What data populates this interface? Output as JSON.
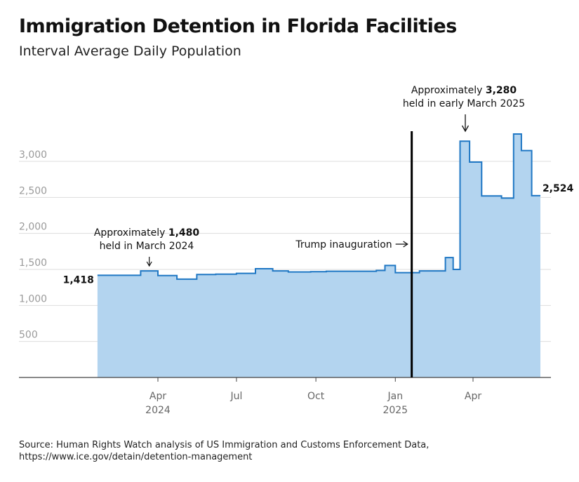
{
  "chart_data": {
    "type": "area",
    "title": "Immigration Detention in Florida Facilities",
    "subtitle": "Interval Average Daily Population",
    "xlabel": "",
    "ylabel": "",
    "ylim": [
      0,
      3500
    ],
    "y_ticks": [
      500,
      1000,
      1500,
      2000,
      2500,
      3000
    ],
    "y_tick_labels": [
      "500",
      "1,000",
      "1,500",
      "2,000",
      "2,500",
      "3,000"
    ],
    "grid": true,
    "x_range": [
      "2024-01-22",
      "2025-06-18"
    ],
    "x_ticks": [
      {
        "date": "2024-04-01",
        "label": "Apr",
        "year": "2024"
      },
      {
        "date": "2024-07-01",
        "label": "Jul",
        "year": ""
      },
      {
        "date": "2024-10-01",
        "label": "Oct",
        "year": ""
      },
      {
        "date": "2025-01-01",
        "label": "Jan",
        "year": "2025"
      },
      {
        "date": "2025-04-01",
        "label": "Apr",
        "year": ""
      }
    ],
    "series": [
      {
        "name": "Interval Average Daily Population",
        "step_start": "2024-01-22",
        "steps": [
          {
            "until": "2024-03-12",
            "value": 1418
          },
          {
            "until": "2024-04-01",
            "value": 1480
          },
          {
            "until": "2024-04-23",
            "value": 1415
          },
          {
            "until": "2024-05-16",
            "value": 1365
          },
          {
            "until": "2024-06-07",
            "value": 1430
          },
          {
            "until": "2024-07-01",
            "value": 1435
          },
          {
            "until": "2024-07-23",
            "value": 1445
          },
          {
            "until": "2024-08-12",
            "value": 1510
          },
          {
            "until": "2024-08-30",
            "value": 1480
          },
          {
            "until": "2024-09-25",
            "value": 1465
          },
          {
            "until": "2024-10-13",
            "value": 1468
          },
          {
            "until": "2024-12-10",
            "value": 1475
          },
          {
            "until": "2024-12-20",
            "value": 1485
          },
          {
            "until": "2025-01-01",
            "value": 1555
          },
          {
            "until": "2025-01-29",
            "value": 1455
          },
          {
            "until": "2025-02-19",
            "value": 1480
          },
          {
            "until": "2025-02-28",
            "value": 1480
          },
          {
            "until": "2025-03-09",
            "value": 1665
          },
          {
            "until": "2025-03-17",
            "value": 1500
          },
          {
            "until": "2025-03-28",
            "value": 3280
          },
          {
            "until": "2025-04-11",
            "value": 2990
          },
          {
            "until": "2025-05-04",
            "value": 2520
          },
          {
            "until": "2025-05-18",
            "value": 2490
          },
          {
            "until": "2025-05-27",
            "value": 3380
          },
          {
            "until": "2025-06-08",
            "value": 3150
          },
          {
            "until": "2025-06-18",
            "value": 2524
          }
        ]
      }
    ],
    "annotations": {
      "start_value": "1,418",
      "end_value": "2,524",
      "march_2024_line1_text": "Approximately ",
      "march_2024_line1_bold": "1,480",
      "march_2024_line2": "held in March 2024",
      "march_2024_date": "2024-03-22",
      "march_2025_line1_text": "Approximately ",
      "march_2025_line1_bold": "3,280",
      "march_2025_line2": "held in early March 2025",
      "march_2025_date": "2025-03-22",
      "inauguration_label": "Trump inauguration",
      "inauguration_date": "2025-01-20"
    },
    "colors": {
      "fill": "#b3d4ef",
      "line": "#1f77c4",
      "grid": "#dddddd",
      "axis": "#444444",
      "marker": "#000000"
    }
  },
  "source": {
    "line1": "Source: Human Rights Watch analysis of US Immigration and Customs Enforcement Data,",
    "line2": "https://www.ice.gov/detain/detention-management"
  }
}
